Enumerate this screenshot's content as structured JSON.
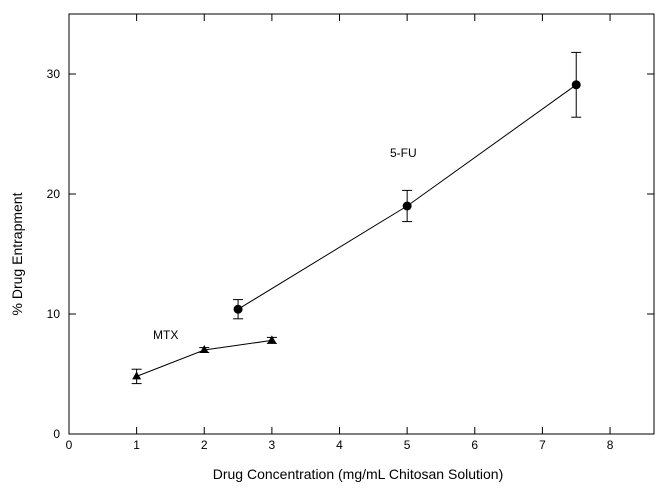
{
  "chart_data": {
    "type": "line",
    "title": "",
    "xlabel": "Drug Concentration (mg/mL Chitosan Solution)",
    "ylabel": "% Drug Entrapment",
    "xlim": [
      0,
      8.65
    ],
    "ylim": [
      0,
      35
    ],
    "xticks": [
      0,
      1,
      2,
      3,
      4,
      5,
      6,
      7,
      8
    ],
    "yticks": [
      0,
      10,
      20,
      30
    ],
    "grid": false,
    "legend": "none",
    "series": [
      {
        "name": "5-FU",
        "marker": "circle",
        "x": [
          2.5,
          5.0,
          7.5
        ],
        "y": [
          10.4,
          19.0,
          29.1
        ],
        "err": [
          0.8,
          1.3,
          2.7
        ]
      },
      {
        "name": "MTX",
        "marker": "triangle",
        "x": [
          1,
          2,
          3
        ],
        "y": [
          4.8,
          7.0,
          7.8
        ],
        "err": [
          0.6,
          0.2,
          0.25
        ]
      }
    ],
    "colors": {
      "line": "#000000",
      "marker": "#000000",
      "background": "#ffffff"
    }
  }
}
